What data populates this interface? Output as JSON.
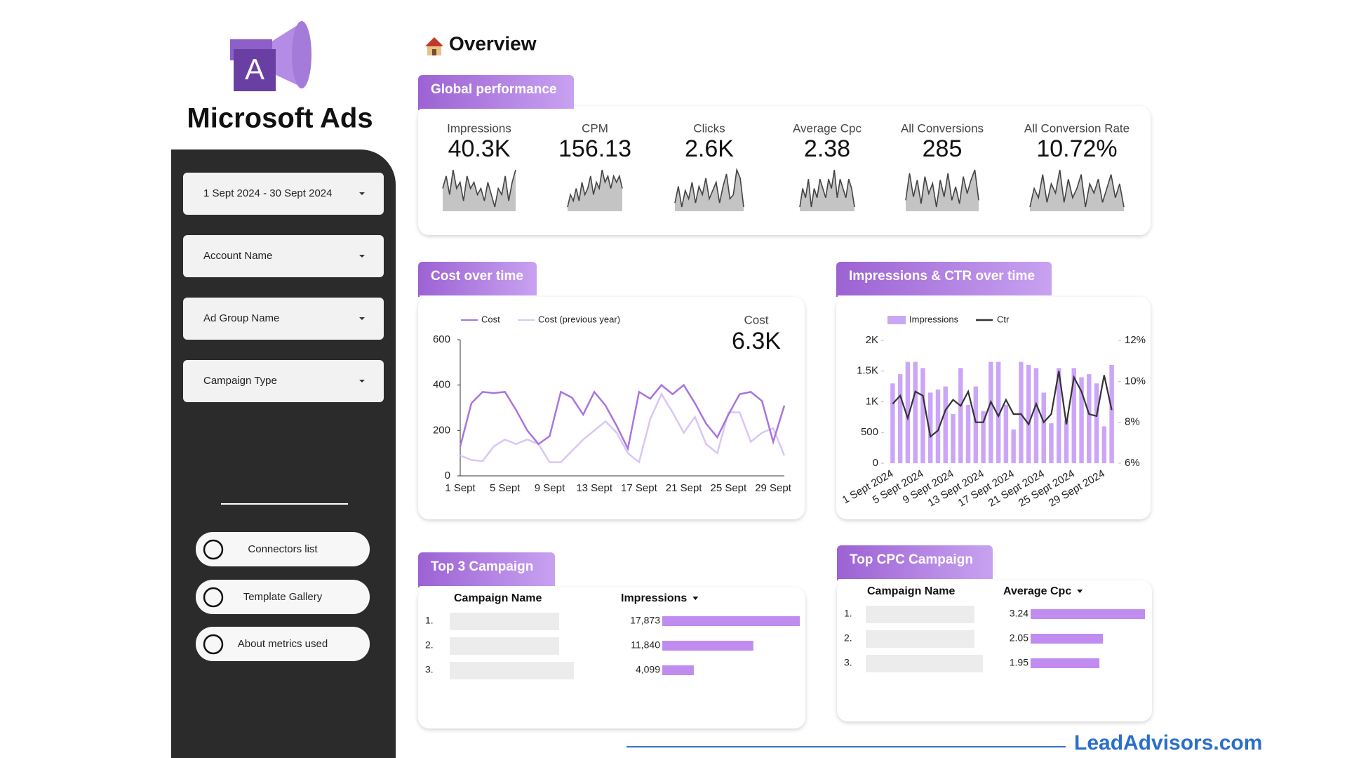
{
  "sidebar": {
    "brand": "Microsoft Ads",
    "logo_letter": "A",
    "filters": [
      "1 Sept 2024 - 30 Sept 2024",
      "Account Name",
      "Ad Group Name",
      "Campaign Type"
    ],
    "buttons": [
      "Connectors list",
      "Template Gallery",
      "About metrics used"
    ]
  },
  "header": {
    "title": "Overview"
  },
  "global_performance": {
    "title": "Global performance",
    "kpis": [
      {
        "label": "Impressions",
        "value": "40.3K",
        "spark": [
          5,
          7,
          4,
          8,
          5,
          6,
          3,
          7,
          5,
          6,
          4,
          5,
          3,
          6,
          4,
          2,
          5,
          4,
          7,
          3,
          6,
          8
        ]
      },
      {
        "label": "CPM",
        "value": "156.13",
        "spark": [
          4,
          6,
          5,
          7,
          5,
          8,
          6,
          7,
          9,
          6,
          8,
          7,
          10,
          8,
          9,
          7,
          9,
          8,
          9,
          7
        ]
      },
      {
        "label": "Clicks",
        "value": "2.6K",
        "spark": [
          5,
          9,
          4,
          8,
          6,
          10,
          5,
          9,
          7,
          11,
          6,
          8,
          10,
          5,
          9,
          12,
          6,
          7,
          13,
          11,
          4
        ]
      },
      {
        "label": "Average Cpc",
        "value": "2.38",
        "spark": [
          6,
          8,
          7,
          9,
          6,
          8,
          7,
          9,
          8,
          7,
          9,
          8,
          10,
          7,
          9,
          8,
          7,
          9,
          8,
          6
        ]
      },
      {
        "label": "All Conversions",
        "value": "285",
        "spark": [
          4,
          12,
          5,
          10,
          3,
          11,
          6,
          9,
          2,
          10,
          5,
          12,
          4,
          8,
          3,
          11,
          6,
          10,
          13,
          4
        ]
      },
      {
        "label": "All Conversion Rate",
        "value": "10.72%",
        "spark": [
          4,
          8,
          6,
          11,
          5,
          9,
          7,
          12,
          5,
          10,
          6,
          8,
          11,
          4,
          9,
          7,
          10,
          5,
          8,
          11,
          6,
          9,
          4
        ]
      }
    ]
  },
  "chart_data": [
    {
      "type": "line",
      "title": "Cost over time",
      "scorecard": {
        "label": "Cost",
        "value": "6.3K"
      },
      "categories": [
        "1 Sept",
        null,
        null,
        null,
        "5 Sept",
        null,
        null,
        null,
        "9 Sept",
        null,
        null,
        null,
        "13 Sept",
        null,
        null,
        null,
        "17 Sept",
        null,
        null,
        null,
        "21 Sept",
        null,
        null,
        null,
        "25 Sept",
        null,
        null,
        null,
        "29 Sept",
        null
      ],
      "series": [
        {
          "name": "Cost",
          "color": "#a974dd",
          "values": [
            130,
            320,
            370,
            365,
            370,
            290,
            200,
            140,
            175,
            370,
            345,
            270,
            370,
            310,
            220,
            120,
            370,
            340,
            400,
            360,
            400,
            320,
            230,
            170,
            270,
            360,
            370,
            330,
            150,
            310
          ]
        },
        {
          "name": "Cost (previous year)",
          "color": "#d9c6f5",
          "values": [
            90,
            70,
            65,
            130,
            160,
            140,
            160,
            140,
            60,
            60,
            110,
            160,
            200,
            240,
            190,
            100,
            60,
            250,
            360,
            280,
            190,
            260,
            140,
            100,
            280,
            280,
            150,
            190,
            210,
            90
          ]
        }
      ],
      "ylim": [
        0,
        600
      ],
      "yticks": [
        0,
        200,
        400,
        600
      ]
    },
    {
      "type": "bar-line",
      "title": "Impressions & CTR over time",
      "categories": [
        "1 Sept 2024",
        null,
        null,
        null,
        "5 Sept 2024",
        null,
        null,
        null,
        "9 Sept 2024",
        null,
        null,
        null,
        "13 Sept 2024",
        null,
        null,
        null,
        "17 Sept 2024",
        null,
        null,
        null,
        "21 Sept 2024",
        null,
        null,
        null,
        "25 Sept 2024",
        null,
        null,
        null,
        "29 Sept 2024",
        null
      ],
      "series": [
        {
          "name": "Impressions",
          "color": "#cba6f7",
          "values": [
            1300,
            1450,
            1650,
            1650,
            1550,
            1150,
            1200,
            1250,
            800,
            1550,
            950,
            1250,
            850,
            1650,
            1650,
            950,
            550,
            1650,
            1600,
            1550,
            1150,
            650,
            1550,
            700,
            1550,
            1400,
            1450,
            1300,
            600,
            1600
          ]
        },
        {
          "name": "Ctr",
          "color": "#333333",
          "axis": "y2",
          "values": [
            8.9,
            9.3,
            8.2,
            9.5,
            9.3,
            7.3,
            7.6,
            8.6,
            9.1,
            8.8,
            9.5,
            8.0,
            8.0,
            9.0,
            8.3,
            9.1,
            8.4,
            8.4,
            7.9,
            8.9,
            8.0,
            8.4,
            10.5,
            7.9,
            10.2,
            9.5,
            8.4,
            8.3,
            10.3,
            8.6
          ]
        }
      ],
      "ylim": [
        0,
        2000
      ],
      "yticks": [
        0,
        500,
        {
          "value": 1000,
          "label": "1K"
        },
        {
          "value": 1500,
          "label": "1.5K"
        },
        {
          "value": 2000,
          "label": "2K"
        }
      ],
      "y2lim": [
        6,
        12
      ],
      "y2ticks": [
        {
          "value": 6,
          "label": "6%"
        },
        {
          "value": 8,
          "label": "8%"
        },
        {
          "value": 10,
          "label": "10%"
        },
        {
          "value": 12,
          "label": "12%"
        }
      ]
    }
  ],
  "tables": [
    {
      "title": "Top 3 Campaign",
      "columns": [
        "Campaign Name",
        "Impressions"
      ],
      "rows": [
        {
          "rank": "1.",
          "value": 17873,
          "value_label": "17,873"
        },
        {
          "rank": "2.",
          "value": 11840,
          "value_label": "11,840"
        },
        {
          "rank": "3.",
          "value": 4099,
          "value_label": "4,099"
        }
      ]
    },
    {
      "title": "Top CPC Campaign",
      "columns": [
        "Campaign Name",
        "Average Cpc"
      ],
      "rows": [
        {
          "rank": "1.",
          "value": 3.24
        },
        {
          "rank": "2.",
          "value": 2.05
        },
        {
          "rank": "3.",
          "value": 1.95
        }
      ]
    }
  ],
  "footer": {
    "brand": "LeadAdvisors.com"
  }
}
